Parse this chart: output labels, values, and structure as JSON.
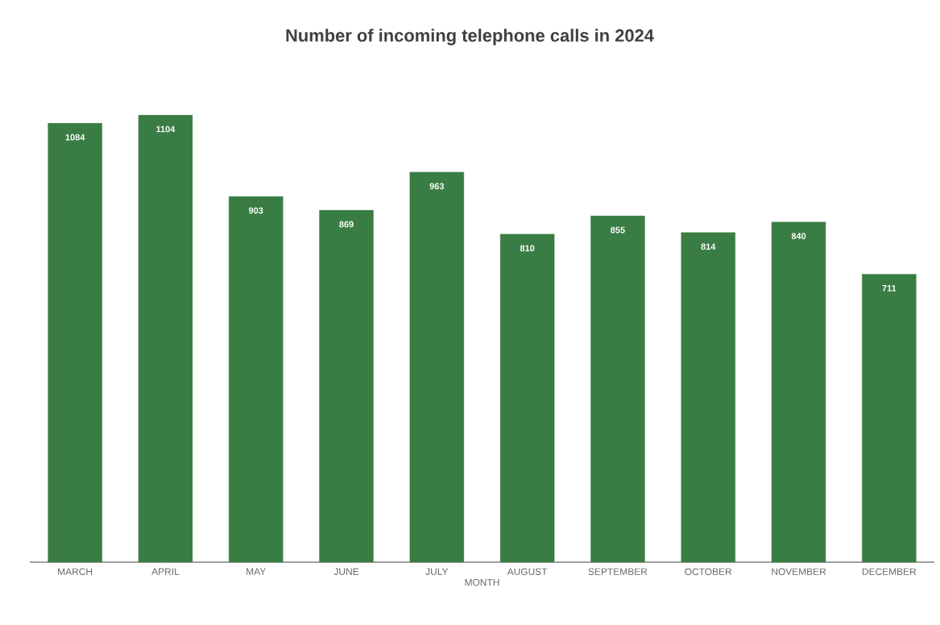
{
  "chart_data": {
    "type": "bar",
    "title": "Number of incoming telephone calls in 2024",
    "xlabel": "MONTH",
    "categories": [
      "MARCH",
      "APRIL",
      "MAY",
      "JUNE",
      "JULY",
      "AUGUST",
      "SEPTEMBER",
      "OCTOBER",
      "NOVEMBER",
      "DECEMBER"
    ],
    "values": [
      1084,
      1104,
      903,
      869,
      963,
      810,
      855,
      814,
      840,
      711
    ],
    "color": "#3a7d44",
    "data_labels": true,
    "tick_labels": "x"
  }
}
